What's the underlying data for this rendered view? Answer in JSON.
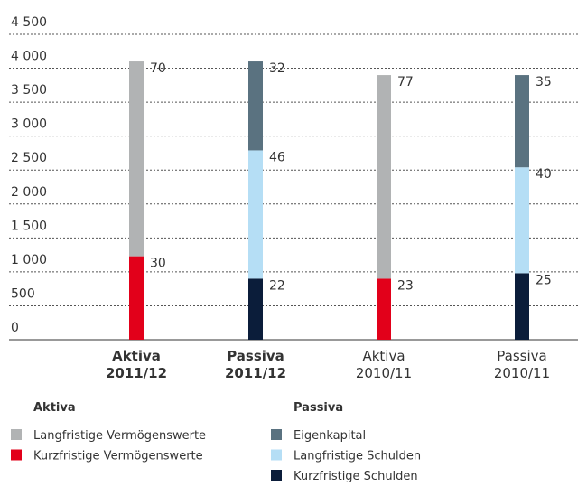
{
  "chart_data": {
    "type": "stacked_bar",
    "categories": [
      [
        "Aktiva",
        "2011/12"
      ],
      [
        "Passiva",
        "2011/12"
      ],
      [
        "Aktiva",
        "2010/11"
      ],
      [
        "Passiva",
        "2010/11"
      ]
    ],
    "bold_categories": [
      true,
      true,
      false,
      false
    ],
    "legend_groups": [
      "Aktiva",
      "Passiva"
    ],
    "series": [
      {
        "name": "Langfristige Vermögenswerte",
        "group": 0,
        "color": "#b1b3b4",
        "values": [
          2870,
          null,
          3000,
          null
        ],
        "shares": [
          70,
          null,
          77,
          null
        ]
      },
      {
        "name": "Kurzfristige Vermögenswerte",
        "group": 0,
        "color": "#e2001a",
        "values": [
          1230,
          null,
          900,
          null
        ],
        "shares": [
          30,
          null,
          23,
          null
        ]
      },
      {
        "name": "Eigenkapital",
        "group": 1,
        "color": "#5a7280",
        "values": [
          null,
          1310,
          null,
          1360
        ],
        "shares": [
          null,
          32,
          null,
          35
        ]
      },
      {
        "name": "Langfristige Schulden",
        "group": 1,
        "color": "#b5def5",
        "values": [
          null,
          1890,
          null,
          1560
        ],
        "shares": [
          null,
          46,
          null,
          40
        ]
      },
      {
        "name": "Kurzfristige Schulden",
        "group": 1,
        "color": "#0b1d3a",
        "values": [
          null,
          900,
          null,
          980
        ],
        "shares": [
          null,
          22,
          null,
          25
        ]
      }
    ],
    "ylim": [
      0,
      4500
    ],
    "yticks": [
      0,
      500,
      {
        "value": 1000,
        "label": "1 000"
      },
      {
        "value": 1500,
        "label": "1 500"
      },
      {
        "value": 2000,
        "label": "2 000"
      },
      {
        "value": 2500,
        "label": "2 500"
      },
      {
        "value": 3000,
        "label": "3 000"
      },
      {
        "value": 3500,
        "label": "3 500"
      },
      {
        "value": 4000,
        "label": "4 000"
      },
      {
        "value": 4500,
        "label": "4 500"
      }
    ],
    "grid": true
  }
}
